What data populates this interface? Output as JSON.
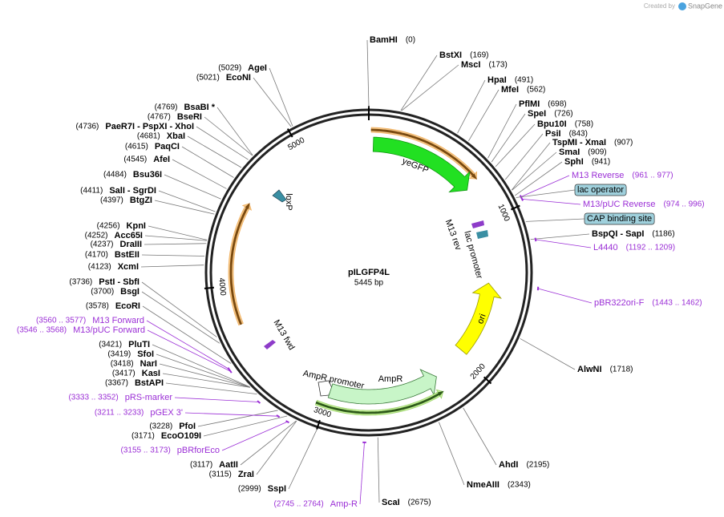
{
  "header": {
    "created_by": "Created by",
    "brand": "SnapGene"
  },
  "plasmid": {
    "name": "pILGFP4L",
    "size": "5445 bp"
  },
  "enzymes": [
    {
      "name": "BamHI",
      "position": "(0)"
    },
    {
      "name": "BstXI",
      "position": "(169)"
    },
    {
      "name": "MscI",
      "position": "(173)"
    },
    {
      "name": "HpaI",
      "position": "(491)"
    },
    {
      "name": "MfeI",
      "position": "(562)"
    },
    {
      "name": "PflMI",
      "position": "(698)"
    },
    {
      "name": "SpeI",
      "position": "(726)"
    },
    {
      "name": "Bpu10I",
      "position": "(758)"
    },
    {
      "name": "PsiI",
      "position": "(843)"
    },
    {
      "name": "TspMI - XmaI",
      "position": "(907)"
    },
    {
      "name": "SmaI",
      "position": "(909)"
    },
    {
      "name": "SphI",
      "position": "(941)"
    },
    {
      "name": "BspQI - SapI",
      "position": "(1186)"
    },
    {
      "name": "AlwNI",
      "position": "(1718)"
    },
    {
      "name": "AhdI",
      "position": "(2195)"
    },
    {
      "name": "NmeAIII",
      "position": "(2343)"
    },
    {
      "name": "ScaI",
      "position": "(2675)"
    },
    {
      "name": "AgeI",
      "position": "(5029)"
    },
    {
      "name": "EcoNI",
      "position": "(5021)"
    },
    {
      "name": "BsaBI *",
      "position": "(4769)"
    },
    {
      "name": "BseRI",
      "position": "(4767)"
    },
    {
      "name": "PaeR7I - PspXI - XhoI",
      "position": "(4736)"
    },
    {
      "name": "XbaI",
      "position": "(4681)"
    },
    {
      "name": "PaqCI",
      "position": "(4615)"
    },
    {
      "name": "AfeI",
      "position": "(4545)"
    },
    {
      "name": "Bsu36I",
      "position": "(4484)"
    },
    {
      "name": "SalI - SgrDI",
      "position": "(4411)"
    },
    {
      "name": "BtgZI",
      "position": "(4397)"
    },
    {
      "name": "KpnI",
      "position": "(4256)"
    },
    {
      "name": "Acc65I",
      "position": "(4252)"
    },
    {
      "name": "DraIII",
      "position": "(4237)"
    },
    {
      "name": "BstEII",
      "position": "(4170)"
    },
    {
      "name": "XcmI",
      "position": "(4123)"
    },
    {
      "name": "PstI - SbfI",
      "position": "(3736)"
    },
    {
      "name": "BsgI",
      "position": "(3700)"
    },
    {
      "name": "EcoRI",
      "position": "(3578)"
    },
    {
      "name": "PluTI",
      "position": "(3421)"
    },
    {
      "name": "SfoI",
      "position": "(3419)"
    },
    {
      "name": "NarI",
      "position": "(3418)"
    },
    {
      "name": "KasI",
      "position": "(3417)"
    },
    {
      "name": "BstAPI",
      "position": "(3367)"
    },
    {
      "name": "PfoI",
      "position": "(3228)"
    },
    {
      "name": "EcoO109I",
      "position": "(3171)"
    },
    {
      "name": "AatII",
      "position": "(3117)"
    },
    {
      "name": "ZraI",
      "position": "(3115)"
    },
    {
      "name": "SspI",
      "position": "(2999)"
    }
  ],
  "primers": [
    {
      "name": "M13 Reverse",
      "range": "(961 .. 977)"
    },
    {
      "name": "M13/pUC Reverse",
      "range": "(974 .. 996)"
    },
    {
      "name": "L4440",
      "range": "(1192 .. 1209)"
    },
    {
      "name": "pBR322ori-F",
      "range": "(1443 .. 1462)"
    },
    {
      "name": "M13 Forward",
      "range": "(3560 .. 3577)"
    },
    {
      "name": "M13/pUC Forward",
      "range": "(3546 .. 3568)"
    },
    {
      "name": "pRS-marker",
      "range": "(3333 .. 3352)"
    },
    {
      "name": "pGEX 3'",
      "range": "(3211 .. 3233)"
    },
    {
      "name": "pBRforEco",
      "range": "(3155 .. 3173)"
    },
    {
      "name": "Amp-R",
      "range": "(2745 .. 2764)"
    }
  ],
  "boxed_features": [
    "lac operator",
    "CAP binding site"
  ],
  "map_labels": [
    "yeGFP",
    "loxP",
    "M13 rev",
    "lac promoter",
    "ori",
    "AmpR promoter",
    "AmpR",
    "M13 fwd"
  ],
  "ticks": [
    "1000",
    "2000",
    "3000",
    "4000",
    "5000"
  ]
}
